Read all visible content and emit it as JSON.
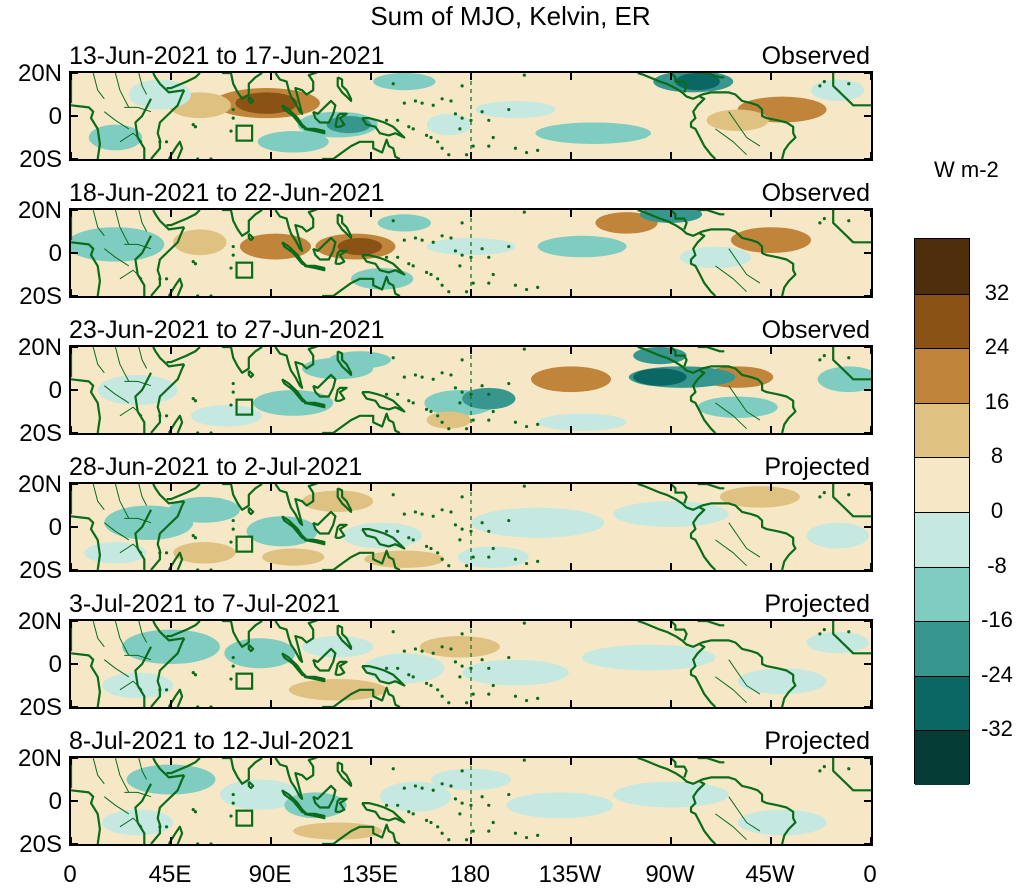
{
  "title": "Sum of MJO, Kelvin, ER",
  "panels": [
    {
      "dates": "13-Jun-2021 to 17-Jun-2021",
      "status": "Observed"
    },
    {
      "dates": "18-Jun-2021 to 22-Jun-2021",
      "status": "Observed"
    },
    {
      "dates": "23-Jun-2021 to 27-Jun-2021",
      "status": "Observed"
    },
    {
      "dates": "28-Jun-2021 to 2-Jul-2021",
      "status": "Projected"
    },
    {
      "dates": "3-Jul-2021 to 7-Jul-2021",
      "status": "Projected"
    },
    {
      "dates": "8-Jul-2021 to 12-Jul-2021",
      "status": "Projected"
    }
  ],
  "lat_labels": [
    "20N",
    "0",
    "20S"
  ],
  "lon_labels": [
    "0",
    "45E",
    "90E",
    "135E",
    "180",
    "135W",
    "90W",
    "45W",
    "0"
  ],
  "colorbar": {
    "unit": "W m-2",
    "labels": [
      "32",
      "24",
      "16",
      "8",
      "0",
      "-8",
      "-16",
      "-24",
      "-32"
    ],
    "colors": [
      "#4f2f0b",
      "#8b5215",
      "#c0853a",
      "#dfc281",
      "#f6e8c6",
      "#c5e8e1",
      "#7fccc0",
      "#37968e",
      "#0b6763",
      "#053c36"
    ]
  },
  "colors": {
    "coast": "#0a6b1a"
  }
}
